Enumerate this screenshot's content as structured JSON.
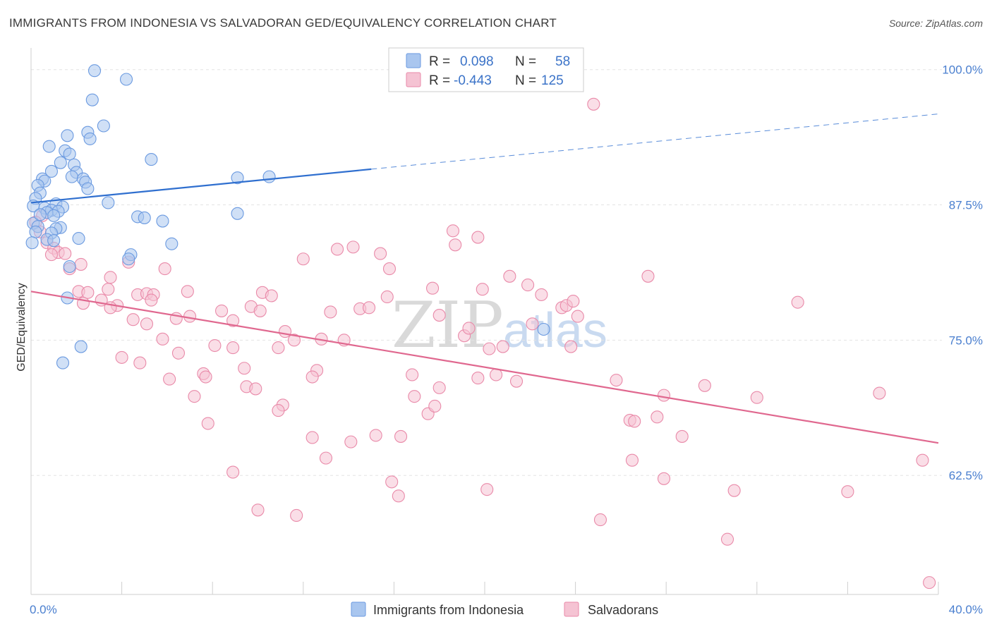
{
  "chart_data": {
    "type": "scatter",
    "title": "IMMIGRANTS FROM INDONESIA VS SALVADORAN GED/EQUIVALENCY CORRELATION CHART",
    "source": "Source: ZipAtlas.com",
    "xlabel": "",
    "ylabel": "GED/Equivalency",
    "xlim": [
      0,
      40
    ],
    "ylim": [
      51.5,
      102
    ],
    "x_tick_labels": [
      "0.0%",
      "40.0%"
    ],
    "y_ticks": [
      {
        "value": 100,
        "label": "100.0%"
      },
      {
        "value": 87.5,
        "label": "87.5%"
      },
      {
        "value": 75,
        "label": "75.0%"
      },
      {
        "value": 62.5,
        "label": "62.5%"
      }
    ],
    "grid": true,
    "legend_position": "top-center",
    "watermark": {
      "zip": "ZIP",
      "atlas": "atlas"
    },
    "series": [
      {
        "name": "Immigrants from Indonesia",
        "color": "#6b9ae0",
        "fill": "#a9c6ef",
        "line_color": "#2f6fcf",
        "R": "0.098",
        "N": "58",
        "trend": {
          "x0": 0,
          "y0": 87.7,
          "x1": 15,
          "y1": 90.8,
          "dash_to_x": 40,
          "dash_to_y": 95.9
        },
        "points": [
          [
            2.8,
            99.9
          ],
          [
            4.2,
            99.1
          ],
          [
            2.7,
            97.2
          ],
          [
            3.2,
            94.8
          ],
          [
            2.5,
            94.2
          ],
          [
            1.6,
            93.9
          ],
          [
            2.6,
            93.6
          ],
          [
            0.8,
            92.9
          ],
          [
            1.5,
            92.5
          ],
          [
            1.7,
            92.2
          ],
          [
            5.3,
            91.7
          ],
          [
            1.3,
            91.4
          ],
          [
            1.9,
            91.2
          ],
          [
            0.9,
            90.6
          ],
          [
            2.0,
            90.5
          ],
          [
            1.8,
            90.1
          ],
          [
            2.3,
            89.9
          ],
          [
            9.1,
            90.0
          ],
          [
            10.5,
            90.1
          ],
          [
            0.5,
            89.9
          ],
          [
            0.6,
            89.7
          ],
          [
            2.4,
            89.6
          ],
          [
            0.3,
            89.3
          ],
          [
            2.5,
            89.0
          ],
          [
            0.4,
            88.6
          ],
          [
            0.2,
            88.1
          ],
          [
            3.4,
            87.7
          ],
          [
            1.1,
            87.6
          ],
          [
            1.4,
            87.3
          ],
          [
            0.6,
            87.2
          ],
          [
            0.9,
            87.0
          ],
          [
            1.2,
            86.9
          ],
          [
            0.7,
            86.8
          ],
          [
            1.0,
            86.5
          ],
          [
            9.1,
            86.7
          ],
          [
            4.7,
            86.4
          ],
          [
            5.0,
            86.3
          ],
          [
            5.8,
            86.0
          ],
          [
            0.1,
            85.8
          ],
          [
            0.3,
            85.5
          ],
          [
            1.3,
            85.4
          ],
          [
            1.1,
            85.3
          ],
          [
            0.2,
            85.0
          ],
          [
            0.9,
            84.9
          ],
          [
            2.1,
            84.4
          ],
          [
            0.7,
            84.3
          ],
          [
            1.0,
            84.2
          ],
          [
            6.2,
            83.9
          ],
          [
            0.05,
            84.0
          ],
          [
            4.4,
            82.9
          ],
          [
            4.3,
            82.5
          ],
          [
            1.7,
            81.8
          ],
          [
            1.6,
            78.9
          ],
          [
            22.6,
            76.0
          ],
          [
            2.2,
            74.4
          ],
          [
            1.4,
            72.9
          ],
          [
            0.1,
            87.4
          ],
          [
            0.4,
            86.6
          ]
        ]
      },
      {
        "name": "Salvadorans",
        "color": "#e98aa9",
        "fill": "#f5c3d3",
        "line_color": "#e0688f",
        "R": "-0.443",
        "N": "125",
        "trend": {
          "x0": 0,
          "y0": 79.5,
          "x1": 40,
          "y1": 65.5
        },
        "points": [
          [
            24.8,
            96.8
          ],
          [
            0.5,
            86.5
          ],
          [
            0.2,
            85.9
          ],
          [
            0.4,
            85.0
          ],
          [
            0.7,
            84.0
          ],
          [
            1.0,
            83.5
          ],
          [
            1.2,
            83.1
          ],
          [
            1.5,
            83.0
          ],
          [
            0.9,
            82.9
          ],
          [
            2.2,
            82.0
          ],
          [
            1.7,
            81.6
          ],
          [
            4.3,
            82.2
          ],
          [
            5.9,
            81.6
          ],
          [
            12.0,
            82.5
          ],
          [
            13.5,
            83.4
          ],
          [
            14.2,
            83.6
          ],
          [
            15.4,
            83.0
          ],
          [
            15.8,
            81.6
          ],
          [
            18.6,
            85.1
          ],
          [
            18.7,
            83.8
          ],
          [
            19.7,
            84.5
          ],
          [
            21.1,
            80.9
          ],
          [
            27.2,
            80.9
          ],
          [
            3.5,
            80.8
          ],
          [
            2.1,
            79.5
          ],
          [
            2.5,
            79.4
          ],
          [
            3.4,
            79.7
          ],
          [
            4.7,
            79.2
          ],
          [
            5.1,
            79.3
          ],
          [
            5.4,
            79.2
          ],
          [
            6.9,
            79.5
          ],
          [
            10.2,
            79.4
          ],
          [
            10.6,
            79.1
          ],
          [
            17.7,
            79.8
          ],
          [
            19.9,
            79.7
          ],
          [
            21.9,
            80.1
          ],
          [
            22.5,
            79.2
          ],
          [
            2.3,
            78.4
          ],
          [
            3.1,
            78.7
          ],
          [
            3.8,
            78.2
          ],
          [
            3.5,
            78.0
          ],
          [
            5.3,
            78.7
          ],
          [
            9.7,
            78.1
          ],
          [
            10.1,
            77.7
          ],
          [
            13.2,
            77.6
          ],
          [
            14.5,
            77.9
          ],
          [
            14.9,
            78.0
          ],
          [
            15.7,
            79.0
          ],
          [
            23.4,
            78.0
          ],
          [
            23.6,
            78.2
          ],
          [
            23.9,
            78.6
          ],
          [
            33.8,
            78.5
          ],
          [
            24.1,
            77.2
          ],
          [
            8.4,
            77.7
          ],
          [
            8.9,
            76.8
          ],
          [
            4.5,
            76.9
          ],
          [
            5.1,
            76.5
          ],
          [
            6.4,
            77.0
          ],
          [
            7.0,
            77.2
          ],
          [
            11.2,
            75.8
          ],
          [
            11.6,
            75.0
          ],
          [
            12.8,
            75.1
          ],
          [
            13.8,
            75.0
          ],
          [
            18.0,
            77.3
          ],
          [
            19.1,
            75.4
          ],
          [
            19.3,
            76.1
          ],
          [
            22.1,
            76.5
          ],
          [
            5.8,
            75.1
          ],
          [
            8.1,
            74.5
          ],
          [
            8.9,
            74.3
          ],
          [
            10.9,
            74.3
          ],
          [
            20.2,
            74.2
          ],
          [
            20.8,
            74.4
          ],
          [
            23.8,
            74.4
          ],
          [
            4.0,
            73.4
          ],
          [
            6.5,
            73.8
          ],
          [
            4.8,
            72.9
          ],
          [
            9.4,
            72.4
          ],
          [
            12.6,
            72.2
          ],
          [
            7.6,
            71.9
          ],
          [
            7.7,
            71.6
          ],
          [
            12.4,
            71.6
          ],
          [
            6.1,
            71.4
          ],
          [
            16.8,
            71.8
          ],
          [
            19.7,
            71.5
          ],
          [
            20.5,
            71.8
          ],
          [
            21.4,
            71.2
          ],
          [
            25.8,
            71.3
          ],
          [
            9.5,
            70.7
          ],
          [
            9.9,
            70.5
          ],
          [
            18.0,
            70.6
          ],
          [
            29.7,
            70.8
          ],
          [
            7.2,
            69.8
          ],
          [
            16.9,
            69.8
          ],
          [
            27.9,
            69.9
          ],
          [
            32.0,
            69.7
          ],
          [
            37.4,
            70.1
          ],
          [
            11.1,
            69.0
          ],
          [
            10.9,
            68.5
          ],
          [
            17.5,
            68.2
          ],
          [
            17.8,
            68.9
          ],
          [
            26.4,
            67.6
          ],
          [
            26.6,
            67.5
          ],
          [
            27.6,
            67.9
          ],
          [
            7.8,
            67.3
          ],
          [
            12.4,
            66.0
          ],
          [
            14.1,
            65.6
          ],
          [
            15.2,
            66.2
          ],
          [
            16.3,
            66.1
          ],
          [
            28.7,
            66.1
          ],
          [
            13.0,
            64.1
          ],
          [
            26.5,
            63.9
          ],
          [
            39.3,
            63.9
          ],
          [
            8.9,
            62.8
          ],
          [
            27.9,
            62.2
          ],
          [
            15.9,
            61.9
          ],
          [
            20.1,
            61.2
          ],
          [
            31.0,
            61.1
          ],
          [
            36.0,
            61.0
          ],
          [
            16.2,
            60.6
          ],
          [
            10.0,
            59.3
          ],
          [
            11.7,
            58.8
          ],
          [
            25.1,
            58.4
          ],
          [
            30.7,
            56.6
          ],
          [
            39.6,
            52.6
          ]
        ]
      }
    ]
  },
  "bottom_legend": [
    {
      "label": "Immigrants from Indonesia"
    },
    {
      "label": "Salvadorans"
    }
  ],
  "legend": {
    "r_label": "R =",
    "n_label": "N ="
  }
}
